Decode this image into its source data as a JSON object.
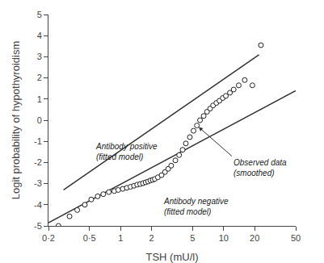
{
  "chart_data": {
    "type": "scatter",
    "xlabel": "TSH (mU/l)",
    "ylabel": "Logit probability of hypothyroidism",
    "log": "x",
    "grid": false,
    "xlim": [
      0.2,
      50
    ],
    "ylim": [
      -5,
      5
    ],
    "xticks": [
      {
        "value": 0.2,
        "label": "0·2"
      },
      {
        "value": 0.5,
        "label": "0·5"
      },
      1,
      2,
      5,
      10,
      20,
      50
    ],
    "yticks": [
      -5,
      -4,
      -3,
      -2,
      -1,
      0,
      1,
      2,
      3,
      4,
      5
    ],
    "series": [
      {
        "type": "line",
        "color": "#333333",
        "line_style": "solid",
        "x": [
          0.28,
          22.0
        ],
        "values": [
          -3.3,
          3.1
        ]
      },
      {
        "type": "line",
        "color": "#333333",
        "line_style": "solid",
        "x": [
          0.2,
          50.0
        ],
        "values": [
          -4.85,
          1.4
        ]
      },
      {
        "type": "scatter",
        "color": "#222222",
        "marker": "open circle",
        "x": [
          0.25,
          0.32,
          0.38,
          0.45,
          0.52,
          0.6,
          0.68,
          0.77,
          0.87,
          0.95,
          1.05,
          1.15,
          1.25,
          1.35,
          1.45,
          1.55,
          1.65,
          1.75,
          1.85,
          1.95,
          2.05,
          2.15,
          2.3,
          2.5,
          2.7,
          2.9,
          3.1,
          3.4,
          3.7,
          4.0,
          4.3,
          4.7,
          5.1,
          5.5,
          5.9,
          6.4,
          6.9,
          7.4,
          7.9,
          8.5,
          9.1,
          9.8,
          10.5,
          11.5,
          12.5,
          14.0,
          16.0,
          19.0,
          23.0
        ],
        "values": [
          -5.0,
          -4.55,
          -4.25,
          -4.0,
          -3.75,
          -3.6,
          -3.5,
          -3.4,
          -3.35,
          -3.3,
          -3.25,
          -3.2,
          -3.15,
          -3.1,
          -3.05,
          -3.02,
          -2.98,
          -2.94,
          -2.9,
          -2.85,
          -2.82,
          -2.78,
          -2.7,
          -2.6,
          -2.45,
          -2.3,
          -2.15,
          -1.9,
          -1.65,
          -1.4,
          -1.1,
          -0.8,
          -0.5,
          -0.25,
          0.0,
          0.2,
          0.4,
          0.55,
          0.7,
          0.82,
          0.92,
          1.05,
          1.15,
          1.3,
          1.45,
          1.65,
          1.9,
          1.65,
          3.55
        ]
      }
    ],
    "annotations": [
      {
        "text": "Antibody positive\n(fitted model)",
        "x": 0.55,
        "y": -0.95
      },
      {
        "text": "Observed data\n(smoothed)",
        "x": 12.0,
        "y": -1.7,
        "arrow_x": 5.5,
        "arrow_y": -0.25
      },
      {
        "text": "Antibody negative\n(fitted model)",
        "x": 2.5,
        "y": -3.55
      }
    ]
  }
}
